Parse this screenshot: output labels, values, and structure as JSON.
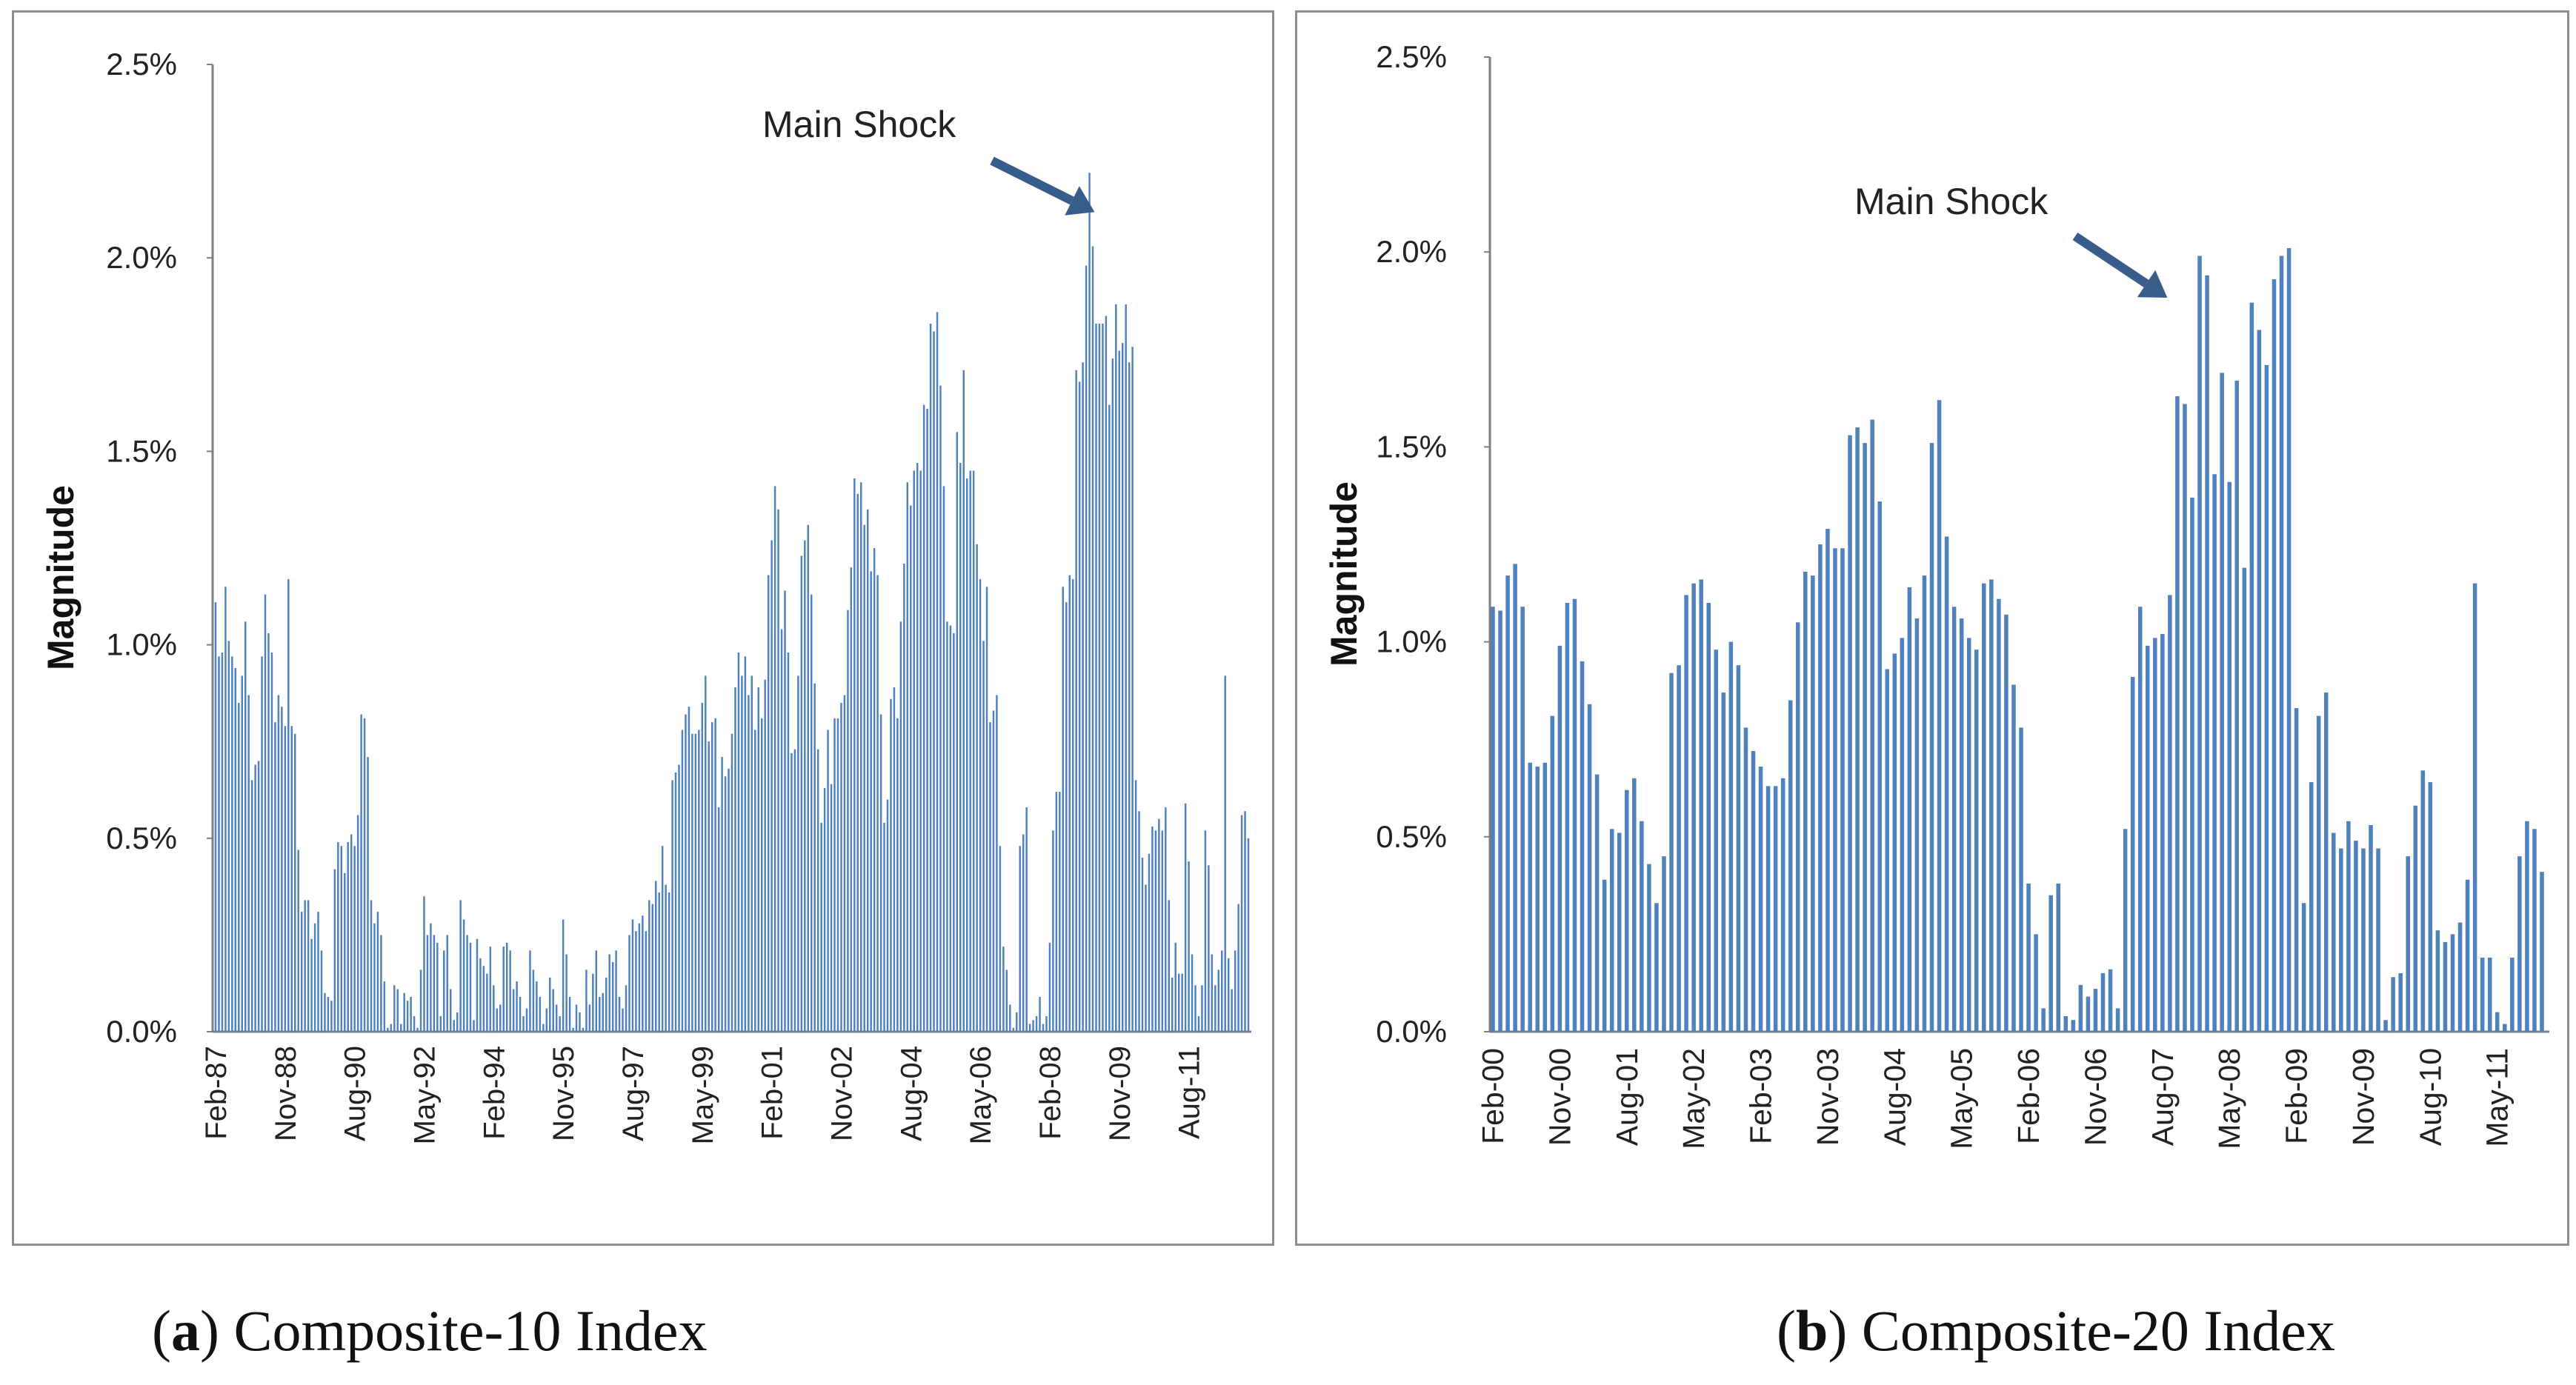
{
  "colors": {
    "bar": "#4f81bd",
    "axis": "#7f7f7f",
    "arrow": "#385d8a",
    "frame": "#8c8c8c"
  },
  "captions": [
    {
      "paren_open": "(",
      "letter": "a",
      "text": ") Composite-10 Index"
    },
    {
      "paren_open": "(",
      "letter": "b",
      "text": ") Composite-20 Index"
    }
  ],
  "chart_data": [
    {
      "type": "bar",
      "title": "",
      "xlabel": "",
      "ylabel": "Magnitude",
      "ylim": [
        0,
        0.025
      ],
      "yticks": [
        "0.0%",
        "0.5%",
        "1.0%",
        "1.5%",
        "2.0%",
        "2.5%"
      ],
      "grid": false,
      "legend": "none",
      "x_tick_labels": [
        "Feb-87",
        "Nov-88",
        "Aug-90",
        "May-92",
        "Feb-94",
        "Nov-95",
        "Aug-97",
        "May-99",
        "Feb-01",
        "Nov-02",
        "Aug-04",
        "May-06",
        "Feb-08",
        "Nov-09",
        "Aug-11"
      ],
      "x_period": "monthly, Feb-87 to Feb-12",
      "annotation": {
        "text": "Main Shock",
        "points_to": "Feb-08",
        "value": 0.0222
      },
      "series": [
        {
          "name": "Composite-10 Index",
          "values": [
            0.0111,
            0.0097,
            0.0098,
            0.0115,
            0.0101,
            0.0097,
            0.0094,
            0.0085,
            0.0092,
            0.0106,
            0.0087,
            0.0065,
            0.0069,
            0.007,
            0.0097,
            0.0113,
            0.0103,
            0.0098,
            0.008,
            0.0087,
            0.0084,
            0.0079,
            0.0117,
            0.0079,
            0.0077,
            0.0047,
            0.0031,
            0.0034,
            0.0034,
            0.0024,
            0.0028,
            0.0031,
            0.0021,
            0.001,
            0.0009,
            0.0008,
            0.0042,
            0.0049,
            0.0048,
            0.0041,
            0.0049,
            0.0051,
            0.0048,
            0.0056,
            0.0082,
            0.0081,
            0.0071,
            0.0034,
            0.0028,
            0.0031,
            0.0025,
            0.0013,
            0.0001,
            0.0002,
            0.0012,
            0.0011,
            0.0002,
            0.001,
            0.0008,
            0.0009,
            0.0004,
            0.0001,
            0.0016,
            0.0035,
            0.0025,
            0.0028,
            0.0025,
            0.0023,
            0.0004,
            0.0021,
            0.0025,
            0.0011,
            0.0003,
            0.0005,
            0.0034,
            0.0029,
            0.0025,
            0.0023,
            0.0003,
            0.0024,
            0.0019,
            0.0017,
            0.0015,
            0.0022,
            0.0012,
            0.0006,
            0.0007,
            0.0022,
            0.0023,
            0.0021,
            0.0011,
            0.0013,
            0.0009,
            0.0004,
            0.0006,
            0.0021,
            0.0016,
            0.0013,
            0.0009,
            0.0002,
            0.0006,
            0.0014,
            0.0011,
            0.0007,
            0.0004,
            0.0029,
            0.002,
            0.0009,
            0.0001,
            0.0007,
            0.0005,
            0.0001,
            0.0016,
            0.0007,
            0.0015,
            0.0021,
            0.0009,
            0.001,
            0.0014,
            0.002,
            0.0018,
            0.0021,
            0.0009,
            0.0006,
            0.0012,
            0.0025,
            0.0029,
            0.0026,
            0.0028,
            0.003,
            0.0026,
            0.0034,
            0.0033,
            0.0039,
            0.0036,
            0.0048,
            0.0038,
            0.0036,
            0.0065,
            0.0067,
            0.0069,
            0.0078,
            0.0082,
            0.0084,
            0.0077,
            0.0077,
            0.0078,
            0.0085,
            0.0092,
            0.0075,
            0.008,
            0.0081,
            0.0058,
            0.0071,
            0.0066,
            0.0068,
            0.0077,
            0.0089,
            0.0098,
            0.0092,
            0.0097,
            0.0087,
            0.0092,
            0.0078,
            0.0089,
            0.0081,
            0.0091,
            0.0118,
            0.0127,
            0.0141,
            0.0135,
            0.0104,
            0.0114,
            0.0098,
            0.0072,
            0.0073,
            0.0092,
            0.0123,
            0.0127,
            0.0131,
            0.0113,
            0.009,
            0.0073,
            0.0054,
            0.0063,
            0.0078,
            0.0064,
            0.0081,
            0.0081,
            0.0085,
            0.0087,
            0.0109,
            0.012,
            0.0143,
            0.0139,
            0.0142,
            0.0131,
            0.0135,
            0.0119,
            0.0125,
            0.0118,
            0.0082,
            0.0054,
            0.006,
            0.0086,
            0.0089,
            0.0081,
            0.0106,
            0.0121,
            0.0142,
            0.0136,
            0.0145,
            0.0147,
            0.0145,
            0.0162,
            0.0161,
            0.0183,
            0.0181,
            0.0186,
            0.0167,
            0.0141,
            0.0106,
            0.0105,
            0.0103,
            0.0155,
            0.0147,
            0.0171,
            0.0143,
            0.0145,
            0.0145,
            0.0126,
            0.0117,
            0.0101,
            0.0115,
            0.008,
            0.0083,
            0.0087,
            0.0048,
            0.0022,
            0.0016,
            0.0007,
            0.0001,
            0.0005,
            0.0048,
            0.0051,
            0.0058,
            0.0002,
            0.0003,
            0.0004,
            0.0009,
            0.0002,
            0.0004,
            0.0023,
            0.0052,
            0.0062,
            0.0062,
            0.0115,
            0.0111,
            0.0118,
            0.0117,
            0.0171,
            0.0168,
            0.0173,
            0.0198,
            0.0222,
            0.0203,
            0.0183,
            0.0183,
            0.0183,
            0.0185,
            0.0162,
            0.0174,
            0.0188,
            0.0176,
            0.0178,
            0.0188,
            0.0173,
            0.0177,
            0.0065,
            0.0057,
            0.0045,
            0.0038,
            0.0046,
            0.0053,
            0.0052,
            0.0055,
            0.0052,
            0.0058,
            0.0034,
            0.0014,
            0.0023,
            0.0015,
            0.0015,
            0.0059,
            0.0044,
            0.002,
            0.0012,
            0.0004,
            0.0012,
            0.0052,
            0.0043,
            0.002,
            0.0012,
            0.0016,
            0.0021,
            0.0092,
            0.0019,
            0.0011,
            0.0021,
            0.0033,
            0.0056,
            0.0057,
            0.005
          ]
        }
      ]
    },
    {
      "type": "bar",
      "title": "",
      "xlabel": "",
      "ylabel": "Magnitude",
      "ylim": [
        0,
        0.025
      ],
      "yticks": [
        "0.0%",
        "0.5%",
        "1.0%",
        "1.5%",
        "2.0%",
        "2.5%"
      ],
      "grid": false,
      "legend": "none",
      "x_tick_labels": [
        "Feb-00",
        "Nov-00",
        "Aug-01",
        "May-02",
        "Feb-03",
        "Nov-03",
        "Aug-04",
        "May-05",
        "Feb-06",
        "Nov-06",
        "Aug-07",
        "May-08",
        "Feb-09",
        "Nov-09",
        "Aug-10",
        "May-11"
      ],
      "x_period": "monthly, Feb-00 to Feb-12",
      "annotation": {
        "text": "Main Shock",
        "points_to": "Aug-07 to May-08",
        "value": 0.0195
      },
      "series": [
        {
          "name": "Composite-20 Index",
          "values": [
            0.0109,
            0.0108,
            0.0117,
            0.012,
            0.0109,
            0.0069,
            0.0068,
            0.0069,
            0.0081,
            0.0099,
            0.011,
            0.0111,
            0.0095,
            0.0084,
            0.0066,
            0.0039,
            0.0052,
            0.0051,
            0.0062,
            0.0065,
            0.0054,
            0.0043,
            0.0033,
            0.0045,
            0.0092,
            0.0094,
            0.0112,
            0.0115,
            0.0116,
            0.011,
            0.0098,
            0.0087,
            0.01,
            0.0094,
            0.0078,
            0.0072,
            0.0068,
            0.0063,
            0.0063,
            0.0065,
            0.0085,
            0.0105,
            0.0118,
            0.0117,
            0.0125,
            0.0129,
            0.0124,
            0.0124,
            0.0153,
            0.0155,
            0.0151,
            0.0157,
            0.0136,
            0.0093,
            0.0097,
            0.0101,
            0.0114,
            0.0106,
            0.0117,
            0.0151,
            0.0162,
            0.0127,
            0.0109,
            0.0106,
            0.0101,
            0.0098,
            0.0115,
            0.0116,
            0.0111,
            0.0107,
            0.0089,
            0.0078,
            0.0038,
            0.0025,
            0.0006,
            0.0035,
            0.0038,
            0.0004,
            0.0003,
            0.0012,
            0.0009,
            0.0011,
            0.0015,
            0.0016,
            0.0006,
            0.0052,
            0.0091,
            0.0109,
            0.0099,
            0.0101,
            0.0102,
            0.0112,
            0.0163,
            0.0161,
            0.0137,
            0.0199,
            0.0194,
            0.0143,
            0.0169,
            0.0141,
            0.0167,
            0.0119,
            0.0187,
            0.018,
            0.0171,
            0.0193,
            0.0199,
            0.0201,
            0.0083,
            0.0033,
            0.0064,
            0.0081,
            0.0087,
            0.0051,
            0.0047,
            0.0054,
            0.0049,
            0.0047,
            0.0053,
            0.0047,
            0.0003,
            0.0014,
            0.0015,
            0.0045,
            0.0058,
            0.0067,
            0.0064,
            0.0026,
            0.0023,
            0.0025,
            0.0028,
            0.0039,
            0.0115,
            0.0019,
            0.0019,
            0.0005,
            0.0002,
            0.0019,
            0.0045,
            0.0054,
            0.0052,
            0.0041
          ]
        }
      ]
    }
  ]
}
